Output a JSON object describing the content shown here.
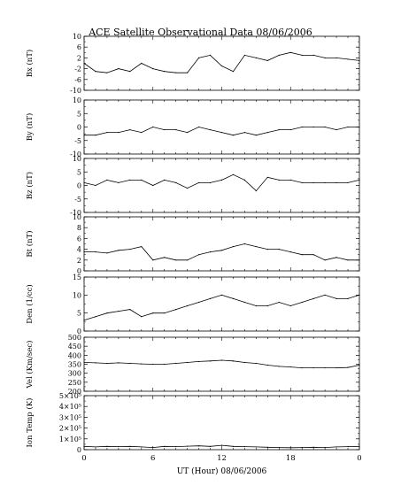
{
  "title": "ACE Satellite Observational Data   08/06/2006",
  "xlabel": "UT (Hour)  08/06/2006",
  "xticks": [
    "0",
    "6",
    "12",
    "18",
    "0"
  ],
  "chart_data": [
    {
      "type": "line",
      "ylabel": "Bx (nT)",
      "ylim": [
        -10,
        10
      ],
      "yticks": [
        "10",
        "6",
        "2",
        "-2",
        "-6",
        "-10"
      ],
      "x": [
        0,
        1,
        2,
        3,
        4,
        5,
        6,
        7,
        8,
        9,
        10,
        11,
        12,
        13,
        14,
        15,
        16,
        17,
        18,
        19,
        20,
        21,
        22,
        23,
        24
      ],
      "values": [
        0,
        -3,
        -3.5,
        -2,
        -3,
        0,
        -2,
        -3,
        -3.5,
        -3.5,
        2,
        3,
        -1,
        -3,
        3,
        2,
        1,
        3,
        4,
        3,
        3,
        2,
        2,
        1.5,
        1
      ]
    },
    {
      "type": "line",
      "ylabel": "By (nT)",
      "ylim": [
        -10,
        10
      ],
      "yticks": [
        "10",
        "5",
        "0",
        "-5",
        "-10"
      ],
      "x": [
        0,
        1,
        2,
        3,
        4,
        5,
        6,
        7,
        8,
        9,
        10,
        11,
        12,
        13,
        14,
        15,
        16,
        17,
        18,
        19,
        20,
        21,
        22,
        23,
        24
      ],
      "values": [
        -3,
        -3,
        -2,
        -2,
        -1,
        -2,
        0,
        -1,
        -1,
        -2,
        0,
        -1,
        -2,
        -3,
        -2,
        -3,
        -2,
        -1,
        -1,
        0,
        0,
        0,
        -1,
        0,
        0
      ]
    },
    {
      "type": "line",
      "ylabel": "Bz (nT)",
      "ylim": [
        -10,
        10
      ],
      "yticks": [
        "10",
        "5",
        "0",
        "-5",
        "-10"
      ],
      "x": [
        0,
        1,
        2,
        3,
        4,
        5,
        6,
        7,
        8,
        9,
        10,
        11,
        12,
        13,
        14,
        15,
        16,
        17,
        18,
        19,
        20,
        21,
        22,
        23,
        24
      ],
      "values": [
        1,
        0,
        2,
        1,
        2,
        2,
        0,
        2,
        1,
        -1,
        1,
        1,
        2,
        4,
        2,
        -2,
        3,
        2,
        2,
        1,
        1,
        1,
        1,
        1,
        2
      ]
    },
    {
      "type": "line",
      "ylabel": "Bt (nT)",
      "ylim": [
        0,
        10
      ],
      "yticks": [
        "10",
        "8",
        "6",
        "4",
        "2",
        "0"
      ],
      "x": [
        0,
        1,
        2,
        3,
        4,
        5,
        6,
        7,
        8,
        9,
        10,
        11,
        12,
        13,
        14,
        15,
        16,
        17,
        18,
        19,
        20,
        21,
        22,
        23,
        24
      ],
      "values": [
        3.5,
        3.5,
        3.3,
        3.8,
        4,
        4.5,
        2,
        2.5,
        2,
        2,
        3,
        3.5,
        3.8,
        4.5,
        5,
        4.5,
        4,
        4,
        3.5,
        3,
        3,
        2,
        2.5,
        2,
        2
      ]
    },
    {
      "type": "line",
      "ylabel": "Den (1/cc)",
      "ylim": [
        0,
        15
      ],
      "yticks": [
        "15",
        "10",
        "5",
        "0"
      ],
      "x": [
        0,
        1,
        2,
        3,
        4,
        5,
        6,
        7,
        8,
        9,
        10,
        11,
        12,
        13,
        14,
        15,
        16,
        17,
        18,
        19,
        20,
        21,
        22,
        23,
        24
      ],
      "values": [
        3,
        4,
        5,
        5.5,
        6,
        4,
        5,
        5,
        6,
        7,
        8,
        9,
        10,
        9,
        8,
        7,
        7,
        8,
        7,
        8,
        9,
        10,
        9,
        9,
        10
      ]
    },
    {
      "type": "line",
      "ylabel": "Vel (Km/sec)",
      "ylim": [
        200,
        500
      ],
      "yticks": [
        "500",
        "450",
        "400",
        "350",
        "300",
        "250",
        "200"
      ],
      "x": [
        0,
        1,
        2,
        3,
        4,
        5,
        6,
        7,
        8,
        9,
        10,
        11,
        12,
        13,
        14,
        15,
        16,
        17,
        18,
        19,
        20,
        21,
        22,
        23,
        24
      ],
      "values": [
        360,
        358,
        355,
        358,
        355,
        352,
        350,
        350,
        355,
        360,
        365,
        368,
        372,
        368,
        360,
        355,
        345,
        338,
        335,
        330,
        330,
        330,
        330,
        332,
        345
      ]
    },
    {
      "type": "line",
      "ylabel": "Ion Temp (K)",
      "ylim": [
        0,
        500000
      ],
      "yticks": [
        "5×10⁵",
        "4×10⁵",
        "3×10⁵",
        "2×10⁵",
        "1×10⁵",
        "0"
      ],
      "x": [
        0,
        1,
        2,
        3,
        4,
        5,
        6,
        7,
        8,
        9,
        10,
        11,
        12,
        13,
        14,
        15,
        16,
        17,
        18,
        19,
        20,
        21,
        22,
        23,
        24
      ],
      "values": [
        30000,
        25000,
        30000,
        28000,
        30000,
        25000,
        20000,
        30000,
        28000,
        32000,
        35000,
        30000,
        40000,
        30000,
        28000,
        25000,
        22000,
        20000,
        18000,
        20000,
        22000,
        20000,
        25000,
        28000,
        30000
      ]
    }
  ]
}
